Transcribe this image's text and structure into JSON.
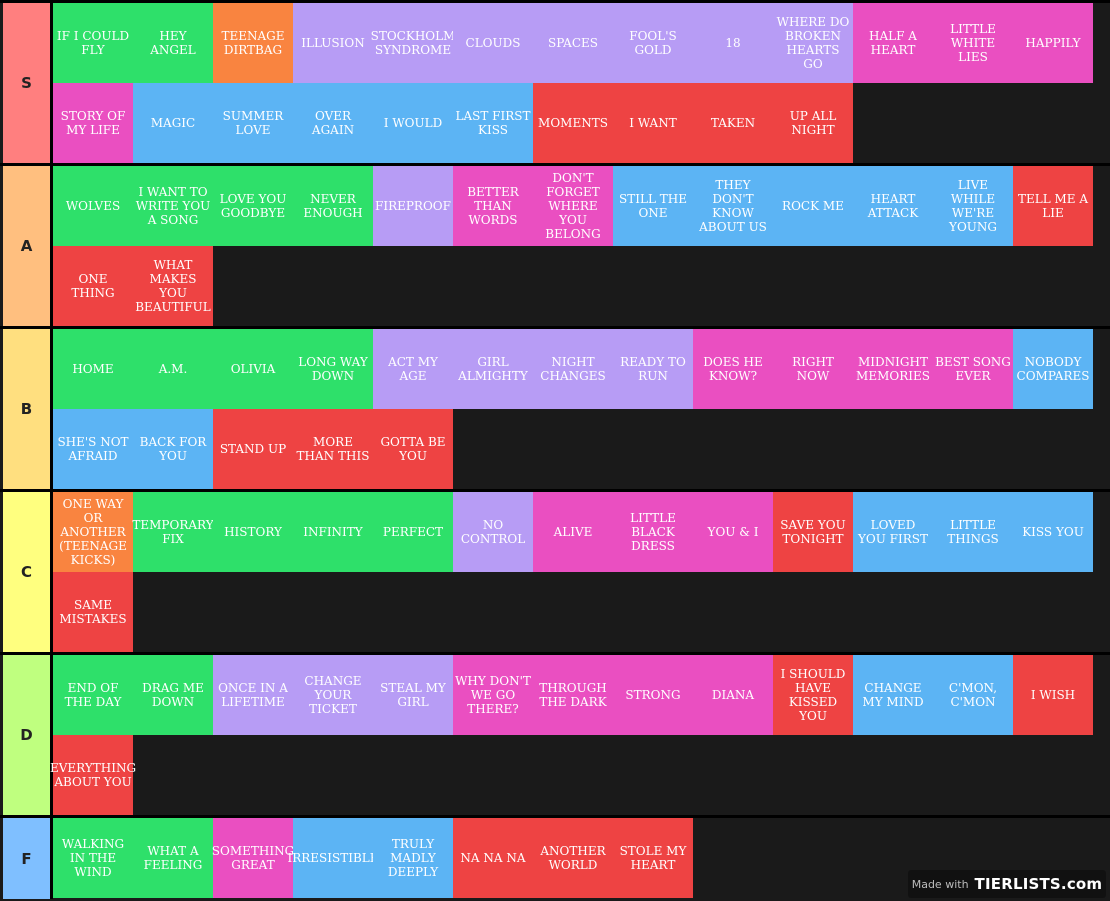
{
  "colors": {
    "green": "#2ee06a",
    "orange": "#f98440",
    "purple": "#b79cf5",
    "pink": "#ea4fc1",
    "blue": "#5cb4f4",
    "red": "#ee4343"
  },
  "tiers": [
    {
      "label": "S",
      "color": "#ff7f7f",
      "items": [
        {
          "text": "IF I COULD FLY",
          "c": "green"
        },
        {
          "text": "HEY ANGEL",
          "c": "green"
        },
        {
          "text": "TEENAGE DIRTBAG",
          "c": "orange"
        },
        {
          "text": "ILLUSION",
          "c": "purple"
        },
        {
          "text": "STOCKHOLM SYNDROME",
          "c": "purple"
        },
        {
          "text": "CLOUDS",
          "c": "purple"
        },
        {
          "text": "SPACES",
          "c": "purple"
        },
        {
          "text": "FOOL'S GOLD",
          "c": "purple"
        },
        {
          "text": "18",
          "c": "purple"
        },
        {
          "text": "WHERE DO BROKEN HEARTS GO",
          "c": "purple"
        },
        {
          "text": "HALF A HEART",
          "c": "pink"
        },
        {
          "text": "LITTLE WHITE LIES",
          "c": "pink"
        },
        {
          "text": "HAPPILY",
          "c": "pink"
        },
        {
          "text": "STORY OF MY LIFE",
          "c": "pink"
        },
        {
          "text": "MAGIC",
          "c": "blue"
        },
        {
          "text": "SUMMER LOVE",
          "c": "blue"
        },
        {
          "text": "OVER AGAIN",
          "c": "blue"
        },
        {
          "text": "I WOULD",
          "c": "blue"
        },
        {
          "text": "LAST FIRST KISS",
          "c": "blue"
        },
        {
          "text": "MOMENTS",
          "c": "red"
        },
        {
          "text": "I WANT",
          "c": "red"
        },
        {
          "text": "TAKEN",
          "c": "red"
        },
        {
          "text": "UP ALL NIGHT",
          "c": "red"
        }
      ]
    },
    {
      "label": "A",
      "color": "#ffbf7f",
      "items": [
        {
          "text": "WOLVES",
          "c": "green"
        },
        {
          "text": "I WANT TO WRITE YOU A SONG",
          "c": "green"
        },
        {
          "text": "LOVE YOU GOODBYE",
          "c": "green"
        },
        {
          "text": "NEVER ENOUGH",
          "c": "green"
        },
        {
          "text": "FIREPROOF",
          "c": "purple"
        },
        {
          "text": "BETTER THAN WORDS",
          "c": "pink"
        },
        {
          "text": "DON'T FORGET WHERE YOU BELONG",
          "c": "pink"
        },
        {
          "text": "STILL THE ONE",
          "c": "blue"
        },
        {
          "text": "THEY DON'T KNOW ABOUT US",
          "c": "blue"
        },
        {
          "text": "ROCK ME",
          "c": "blue"
        },
        {
          "text": "HEART ATTACK",
          "c": "blue"
        },
        {
          "text": "LIVE WHILE WE'RE YOUNG",
          "c": "blue"
        },
        {
          "text": "TELL ME A LIE",
          "c": "red"
        },
        {
          "text": "ONE THING",
          "c": "red"
        },
        {
          "text": "WHAT MAKES YOU BEAUTIFUL",
          "c": "red"
        }
      ]
    },
    {
      "label": "B",
      "color": "#ffdf7f",
      "items": [
        {
          "text": "HOME",
          "c": "green"
        },
        {
          "text": "A.M.",
          "c": "green"
        },
        {
          "text": "OLIVIA",
          "c": "green"
        },
        {
          "text": "LONG WAY DOWN",
          "c": "green"
        },
        {
          "text": "ACT MY AGE",
          "c": "purple"
        },
        {
          "text": "GIRL ALMIGHTY",
          "c": "purple"
        },
        {
          "text": "NIGHT CHANGES",
          "c": "purple"
        },
        {
          "text": "READY TO RUN",
          "c": "purple"
        },
        {
          "text": "DOES HE KNOW?",
          "c": "pink"
        },
        {
          "text": "RIGHT NOW",
          "c": "pink"
        },
        {
          "text": "MIDNIGHT MEMORIES",
          "c": "pink"
        },
        {
          "text": "BEST SONG EVER",
          "c": "pink"
        },
        {
          "text": "NOBODY COMPARES",
          "c": "blue"
        },
        {
          "text": "SHE'S NOT AFRAID",
          "c": "blue"
        },
        {
          "text": "BACK FOR YOU",
          "c": "blue"
        },
        {
          "text": "STAND UP",
          "c": "red"
        },
        {
          "text": "MORE THAN THIS",
          "c": "red"
        },
        {
          "text": "GOTTA BE YOU",
          "c": "red"
        }
      ]
    },
    {
      "label": "C",
      "color": "#ffff7f",
      "items": [
        {
          "text": "ONE WAY OR ANOTHER (TEENAGE KICKS)",
          "c": "orange"
        },
        {
          "text": "TEMPORARY FIX",
          "c": "green"
        },
        {
          "text": "HISTORY",
          "c": "green"
        },
        {
          "text": "INFINITY",
          "c": "green"
        },
        {
          "text": "PERFECT",
          "c": "green"
        },
        {
          "text": "NO CONTROL",
          "c": "purple"
        },
        {
          "text": "ALIVE",
          "c": "pink"
        },
        {
          "text": "LITTLE BLACK DRESS",
          "c": "pink"
        },
        {
          "text": "YOU & I",
          "c": "pink"
        },
        {
          "text": "SAVE YOU TONIGHT",
          "c": "red"
        },
        {
          "text": "LOVED YOU FIRST",
          "c": "blue"
        },
        {
          "text": "LITTLE THINGS",
          "c": "blue"
        },
        {
          "text": "KISS YOU",
          "c": "blue"
        },
        {
          "text": "SAME MISTAKES",
          "c": "red"
        }
      ]
    },
    {
      "label": "D",
      "color": "#bfff7f",
      "items": [
        {
          "text": "END OF THE DAY",
          "c": "green"
        },
        {
          "text": "DRAG ME DOWN",
          "c": "green"
        },
        {
          "text": "ONCE IN A LIFETIME",
          "c": "purple"
        },
        {
          "text": "CHANGE YOUR TICKET",
          "c": "purple"
        },
        {
          "text": "STEAL MY GIRL",
          "c": "purple"
        },
        {
          "text": "WHY DON'T WE GO THERE?",
          "c": "pink"
        },
        {
          "text": "THROUGH THE DARK",
          "c": "pink"
        },
        {
          "text": "STRONG",
          "c": "pink"
        },
        {
          "text": "DIANA",
          "c": "pink"
        },
        {
          "text": "I SHOULD HAVE KISSED YOU",
          "c": "red"
        },
        {
          "text": "CHANGE MY MIND",
          "c": "blue"
        },
        {
          "text": "C'MON, C'MON",
          "c": "blue"
        },
        {
          "text": "I WISH",
          "c": "red"
        },
        {
          "text": "EVERYTHING ABOUT YOU",
          "c": "red"
        }
      ]
    },
    {
      "label": "F",
      "color": "#7fbfff",
      "items": [
        {
          "text": "WALKING IN THE WIND",
          "c": "green"
        },
        {
          "text": "WHAT A FEELING",
          "c": "green"
        },
        {
          "text": "SOMETHING GREAT",
          "c": "pink"
        },
        {
          "text": "IRRESISTIBLE",
          "c": "blue"
        },
        {
          "text": "TRULY MADLY DEEPLY",
          "c": "blue"
        },
        {
          "text": "NA NA NA",
          "c": "red"
        },
        {
          "text": "ANOTHER WORLD",
          "c": "red"
        },
        {
          "text": "STOLE MY HEART",
          "c": "red"
        }
      ]
    }
  ],
  "watermark": {
    "made_with": "Made with",
    "brand": "TIERLISTS.com"
  }
}
